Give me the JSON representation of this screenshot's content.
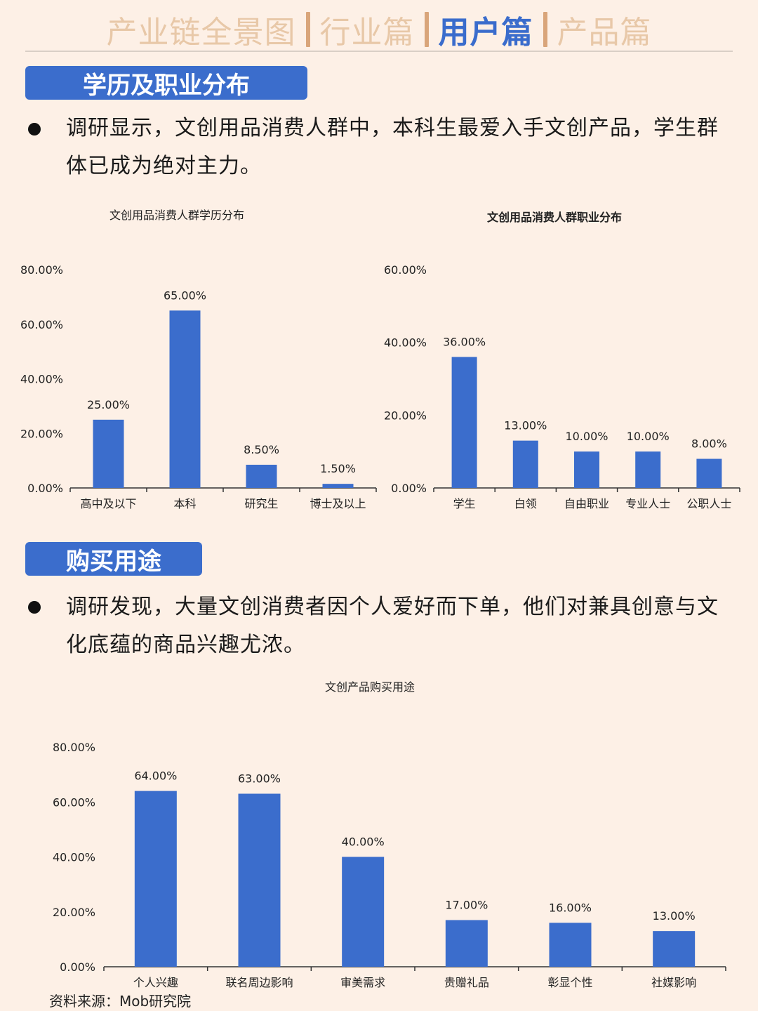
{
  "nav": {
    "tabs": [
      {
        "label": "产业链全景图",
        "active": false
      },
      {
        "label": "行业篇",
        "active": false
      },
      {
        "label": "用户篇",
        "active": true
      },
      {
        "label": "产品篇",
        "active": false
      }
    ]
  },
  "section1": {
    "title": "学历及职业分布",
    "text": "调研显示，文创用品消费人群中，本科生最爱入手文创产品，学生群体已成为绝对主力。"
  },
  "section2": {
    "title": "购买用途",
    "text": "调研发现，大量文创消费者因个人爱好而下单，他们对兼具创意与文化底蕴的商品兴趣尤浓。"
  },
  "source": "资料来源：Mob研究院",
  "colors": {
    "bar": "#3b6dcc",
    "accent": "#3a6ccc",
    "background": "#fdf0e6"
  },
  "chart_data": [
    {
      "type": "bar",
      "title": "文创用品消费人群学历分布",
      "categories": [
        "高中及以下",
        "本科",
        "研究生",
        "博士及以上"
      ],
      "values": [
        25.0,
        65.0,
        8.5,
        1.5
      ],
      "value_labels": [
        "25.00%",
        "65.00%",
        "8.50%",
        "1.50%"
      ],
      "ylim": [
        0,
        80
      ],
      "yticks": [
        "0.00%",
        "20.00%",
        "40.00%",
        "60.00%",
        "80.00%"
      ],
      "grid": false
    },
    {
      "type": "bar",
      "title": "文创用品消费人群职业分布",
      "categories": [
        "学生",
        "白领",
        "自由职业",
        "专业人士",
        "公职人士"
      ],
      "values": [
        36.0,
        13.0,
        10.0,
        10.0,
        8.0
      ],
      "value_labels": [
        "36.00%",
        "13.00%",
        "10.00%",
        "10.00%",
        "8.00%"
      ],
      "ylim": [
        0,
        60
      ],
      "yticks": [
        "0.00%",
        "20.00%",
        "40.00%",
        "60.00%"
      ],
      "grid": false
    },
    {
      "type": "bar",
      "title": "文创产品购买用途",
      "categories": [
        "个人兴趣",
        "联名周边影响",
        "审美需求",
        "贵赠礼品",
        "彰显个性",
        "社媒影响"
      ],
      "values": [
        64.0,
        63.0,
        40.0,
        17.0,
        16.0,
        13.0
      ],
      "value_labels": [
        "64.00%",
        "63.00%",
        "40.00%",
        "17.00%",
        "16.00%",
        "13.00%"
      ],
      "ylim": [
        0,
        80
      ],
      "yticks": [
        "0.00%",
        "20.00%",
        "40.00%",
        "60.00%",
        "80.00%"
      ],
      "grid": false
    }
  ]
}
